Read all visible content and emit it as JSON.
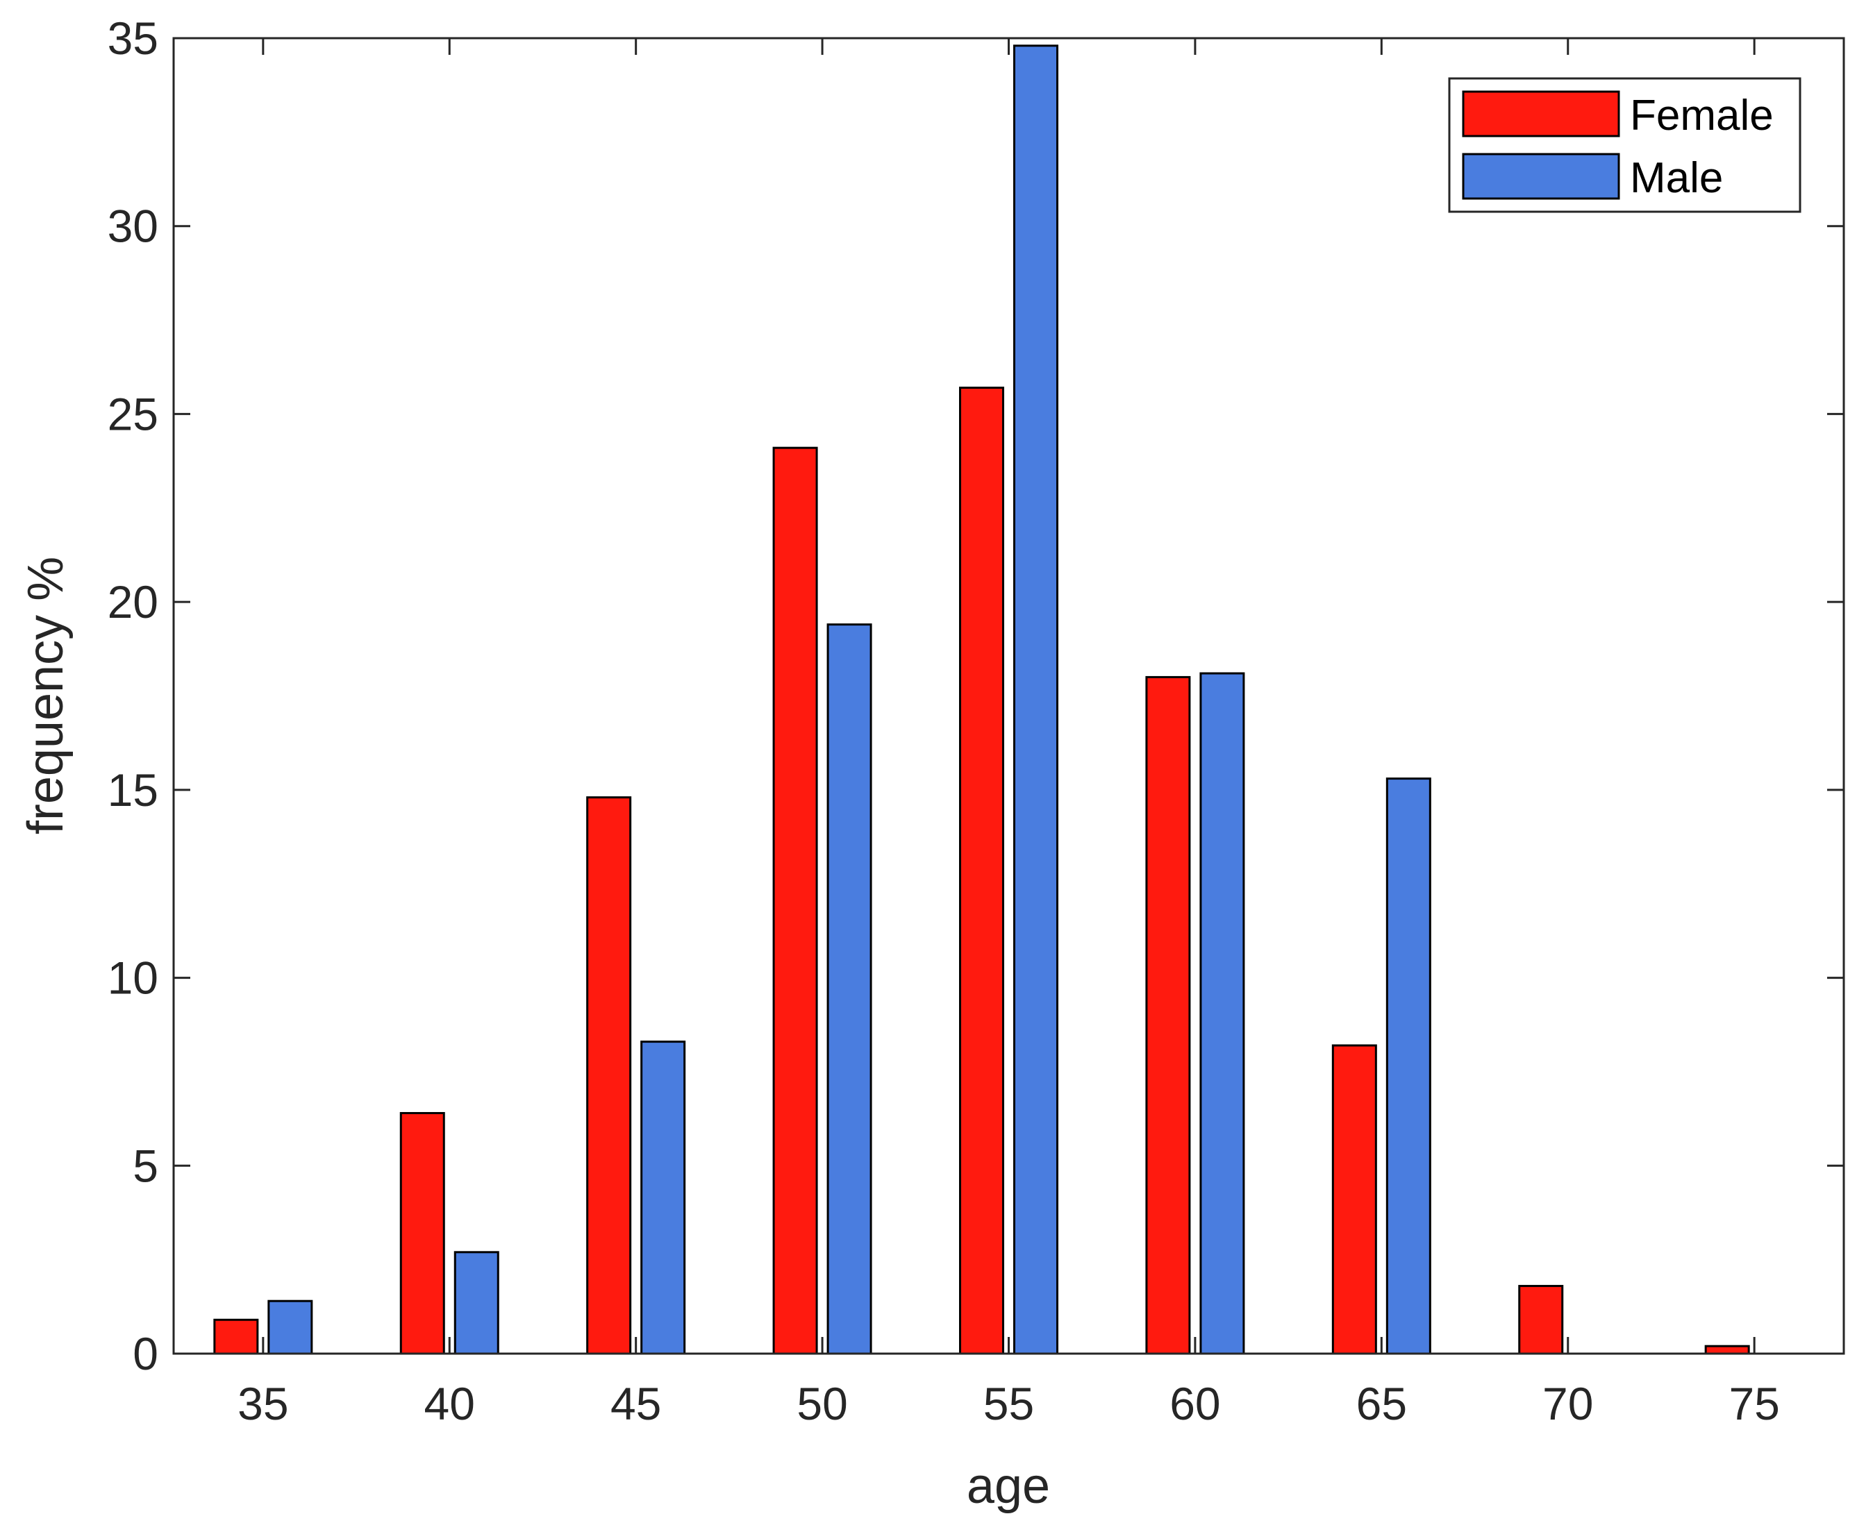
{
  "chart_data": {
    "type": "bar",
    "xlabel": "age",
    "ylabel": "frequency %",
    "categories": [
      "35",
      "40",
      "45",
      "50",
      "55",
      "60",
      "65",
      "70",
      "75"
    ],
    "x": [
      35,
      40,
      45,
      50,
      55,
      60,
      65,
      70,
      75
    ],
    "series": [
      {
        "name": "Female",
        "color": "#ff1a0f",
        "values": [
          0.9,
          6.4,
          14.8,
          24.1,
          25.7,
          18.0,
          8.2,
          1.8,
          0.2
        ]
      },
      {
        "name": "Male",
        "color": "#4a7ddf",
        "values": [
          1.4,
          2.7,
          8.3,
          19.4,
          34.8,
          18.1,
          15.3,
          0,
          0
        ]
      }
    ],
    "ylim": [
      0,
      35
    ],
    "xlim": [
      32.6,
      77.4
    ],
    "yticks": [
      0,
      5,
      10,
      15,
      20,
      25,
      30,
      35
    ],
    "xticks": [
      35,
      40,
      45,
      50,
      55,
      60,
      65,
      70,
      75
    ],
    "grid": false,
    "legend": "top-right"
  }
}
